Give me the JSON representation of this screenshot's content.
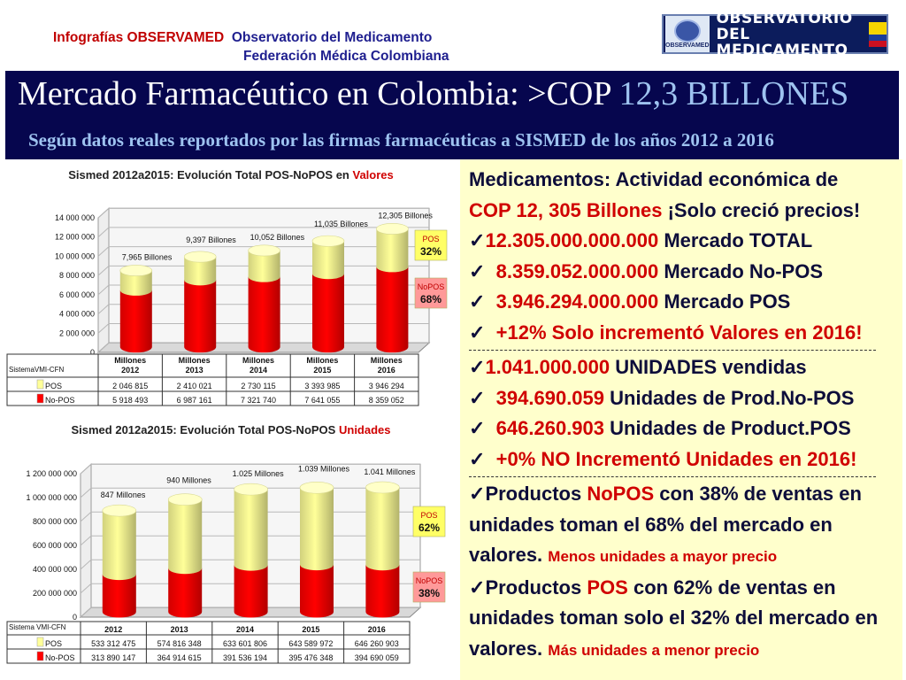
{
  "header": {
    "prefix": "Infografías OBSERVAMED",
    "org1": "Observatorio del Medicamento",
    "org2": "Federación Médica Colombiana"
  },
  "logo": {
    "line1": "OBSERVATORIO",
    "line2": "DEL MEDICAMENTO",
    "emblem_text": "OBSERVAMED"
  },
  "banner": {
    "title_main": "Mercado Farmacéutico en Colombia: >COP",
    "title_highlight": "12,3 BILLONES",
    "subtitle": "Según datos reales reportados por las firmas farmacéuticas a SISMED de los años 2012 a 2016"
  },
  "chart_data": [
    {
      "type": "bar",
      "stacked": true,
      "title": "Sismed 2012a2015: Evolución Total POS-NoPOS en",
      "title_highlight": "Valores",
      "categories": [
        "Millones 2012",
        "Millones 2013",
        "Millones 2014",
        "Millones 2015",
        "Millones 2016"
      ],
      "category_lines": [
        [
          "Millones",
          "2012"
        ],
        [
          "Millones",
          "2013"
        ],
        [
          "Millones",
          "2014"
        ],
        [
          "Millones",
          "2015"
        ],
        [
          "Millones",
          "2016"
        ]
      ],
      "series": [
        {
          "name": "POS",
          "values": [
            2046815,
            2410021,
            2730115,
            3393985,
            3946294
          ],
          "labels": [
            "2 046 815",
            "2 410 021",
            "2 730 115",
            "3 393 985",
            "3 946 294"
          ],
          "color": "#ffff99"
        },
        {
          "name": "No-POS",
          "values": [
            5918493,
            6987161,
            7321740,
            7641055,
            8359052
          ],
          "labels": [
            "5 918 493",
            "6 987 161",
            "7 321 740",
            "7 641 055",
            "8 359 052"
          ],
          "color": "#ff0000"
        }
      ],
      "totals": [
        "7,965 Billones",
        "9,397 Billones",
        "10,052 Billones",
        "11,035 Billones",
        "12,305 Billones"
      ],
      "ylim": [
        0,
        14000000
      ],
      "yticks": [
        0,
        2000000,
        4000000,
        6000000,
        8000000,
        10000000,
        12000000,
        14000000
      ],
      "ytick_labels": [
        "0",
        "2 000 000",
        "4 000 000",
        "6 000 000",
        "8 000 000",
        "10 000 000",
        "12 000 000",
        "14 000 000"
      ],
      "source": "SistemaVMI-CFN",
      "callouts": [
        {
          "label": "POS",
          "value": "32%"
        },
        {
          "label": "NoPOS",
          "value": "68%"
        }
      ],
      "grid": true
    },
    {
      "type": "bar",
      "stacked": true,
      "title": "Sismed 2012a2015: Evolución Total POS-NoPOS",
      "title_highlight": "Unidades",
      "categories": [
        "2012",
        "2013",
        "2014",
        "2015",
        "2016"
      ],
      "category_lines": [
        [
          "2012"
        ],
        [
          "2013"
        ],
        [
          "2014"
        ],
        [
          "2015"
        ],
        [
          "2016"
        ]
      ],
      "series": [
        {
          "name": "POS",
          "values": [
            533312475,
            574816348,
            633601806,
            643589972,
            646260903
          ],
          "labels": [
            "533 312 475",
            "574 816 348",
            "633 601 806",
            "643 589 972",
            "646 260 903"
          ],
          "color": "#ffff99"
        },
        {
          "name": "No-POS",
          "values": [
            313890147,
            364914615,
            391536194,
            395476348,
            394690059
          ],
          "labels": [
            "313 890 147",
            "364 914 615",
            "391 536 194",
            "395 476 348",
            "394 690 059"
          ],
          "color": "#ff0000"
        }
      ],
      "totals": [
        "847 Millones",
        "940 Millones",
        "1.025 Millones",
        "1.039 Millones",
        "1.041 Millones"
      ],
      "ylim": [
        0,
        1200000000
      ],
      "yticks": [
        0,
        200000000,
        400000000,
        600000000,
        800000000,
        1000000000,
        1200000000
      ],
      "ytick_labels": [
        "0",
        "200 000 000",
        "400 000 000",
        "600 000 000",
        "800 000 000",
        "1 000 000 000",
        "1 200 000 000"
      ],
      "source": "Sistema VMI-CFN",
      "callouts": [
        {
          "label": "POS",
          "value": "62%"
        },
        {
          "label": "NoPOS",
          "value": "38%"
        }
      ],
      "grid": true
    }
  ],
  "info": {
    "line1": "Medicamentos: Actividad económica de",
    "line2_red": "COP 12, 305 Billones",
    "line2_rest": "¡Solo creció precios!",
    "b1_red": "12.305.000.000.000",
    "b1_rest": "Mercado TOTAL",
    "b2_red": "8.359.052.000.000",
    "b2_rest": "Mercado No-POS",
    "b3_red": "3.946.294.000.000",
    "b3_rest": "Mercado POS",
    "b4_red": "+12% Solo incrementó Valores en 2016!",
    "b5_red": "1.041.000.000",
    "b5_rest": "UNIDADES vendidas",
    "b6_red": "394.690.059",
    "b6_rest": "Unidades de Prod.No-POS",
    "b7_red": "646.260.903",
    "b7_rest": "Unidades de Product.POS",
    "b8_red": "+0% NO Incrementó Unidades en 2016!",
    "p1_a": "Productos",
    "p1_red": "NoPOS",
    "p1_b": "con 38% de ventas en unidades toman el 68% del mercado en valores.",
    "p1_small": "Menos unidades a mayor precio",
    "p2_a": "Productos",
    "p2_red": "POS",
    "p2_b": "con 62% de ventas en unidades toman solo el 32% del mercado en valores.",
    "p2_small": "Más unidades a menor precio",
    "check": "✓"
  }
}
